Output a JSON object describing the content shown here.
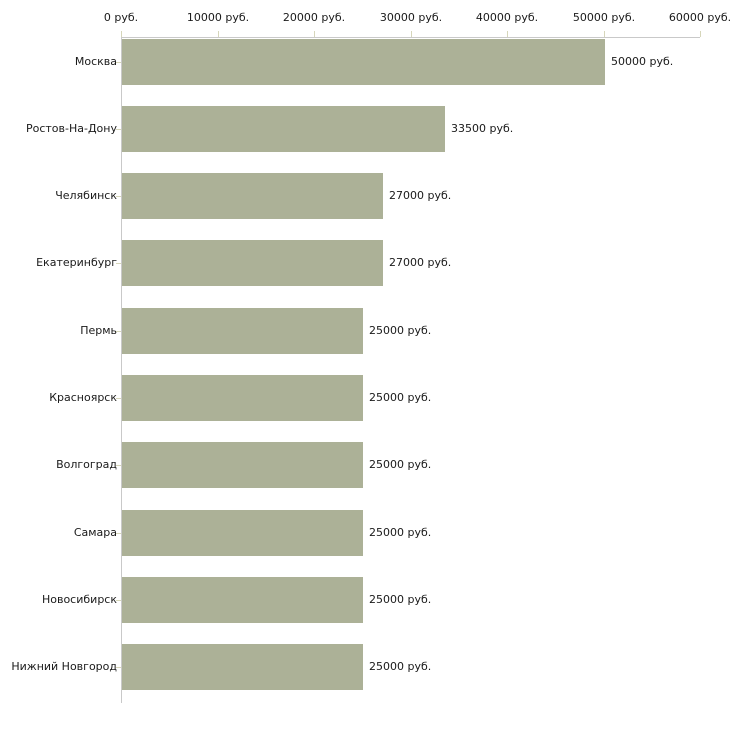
{
  "chart_data": {
    "type": "bar",
    "orientation": "horizontal",
    "title": "",
    "xlabel": "",
    "ylabel": "",
    "grid": false,
    "legend": false,
    "categories": [
      "Москва",
      "Ростов-На-Дону",
      "Челябинск",
      "Екатеринбург",
      "Пермь",
      "Красноярск",
      "Волгоград",
      "Самара",
      "Новосибирск",
      "Нижний Новгород"
    ],
    "values": [
      50000,
      33500,
      27000,
      27000,
      25000,
      25000,
      25000,
      25000,
      25000,
      25000
    ],
    "value_labels": [
      "50000 руб.",
      "33500 руб.",
      "27000 руб.",
      "27000 руб.",
      "25000 руб.",
      "25000 руб.",
      "25000 руб.",
      "25000 руб.",
      "25000 руб.",
      "25000 руб."
    ],
    "x_axis": {
      "position": "top",
      "xlim": [
        0,
        60000
      ],
      "ticks": [
        0,
        10000,
        20000,
        30000,
        40000,
        50000,
        60000
      ],
      "tick_labels": [
        "0 руб.",
        "10000 руб.",
        "20000 руб.",
        "30000 руб.",
        "40000 руб.",
        "50000 руб.",
        "60000 руб."
      ]
    }
  },
  "colors": {
    "bar": "#acb197",
    "axis_line": "#c9c9c9",
    "tick": "#d6d6ba",
    "text": "#1a1a1a",
    "background": "#ffffff"
  }
}
